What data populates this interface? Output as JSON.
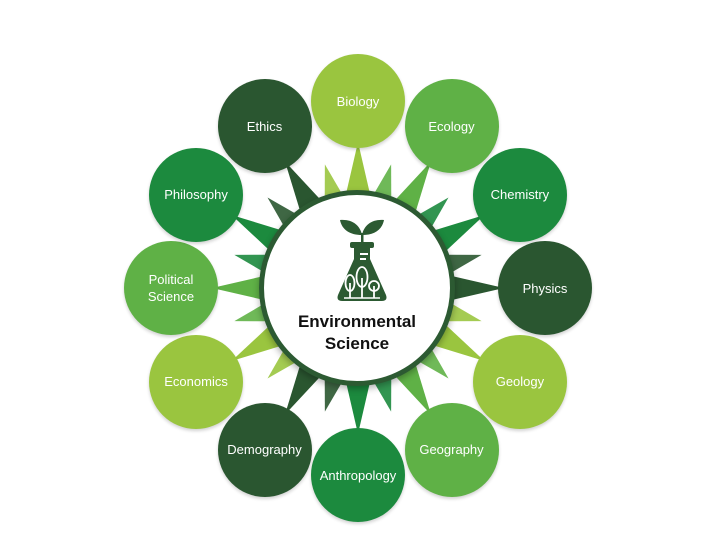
{
  "hub": {
    "title": "Environmental\nScience",
    "icon": "flask-with-plants-icon"
  },
  "disciplines": [
    {
      "label": "Biology",
      "color": "#9ac53f"
    },
    {
      "label": "Ecology",
      "color": "#5fb146"
    },
    {
      "label": "Chemistry",
      "color": "#1c8a3e"
    },
    {
      "label": "Physics",
      "color": "#2a5630"
    },
    {
      "label": "Geology",
      "color": "#9ac53f"
    },
    {
      "label": "Geography",
      "color": "#5fb146"
    },
    {
      "label": "Anthropology",
      "color": "#1c8a3e"
    },
    {
      "label": "Demography",
      "color": "#2a5630"
    },
    {
      "label": "Economics",
      "color": "#9ac53f"
    },
    {
      "label": "Political\nScience",
      "color": "#5fb146"
    },
    {
      "label": "Philosophy",
      "color": "#1c8a3e"
    },
    {
      "label": "Ethics",
      "color": "#2a5630"
    }
  ]
}
